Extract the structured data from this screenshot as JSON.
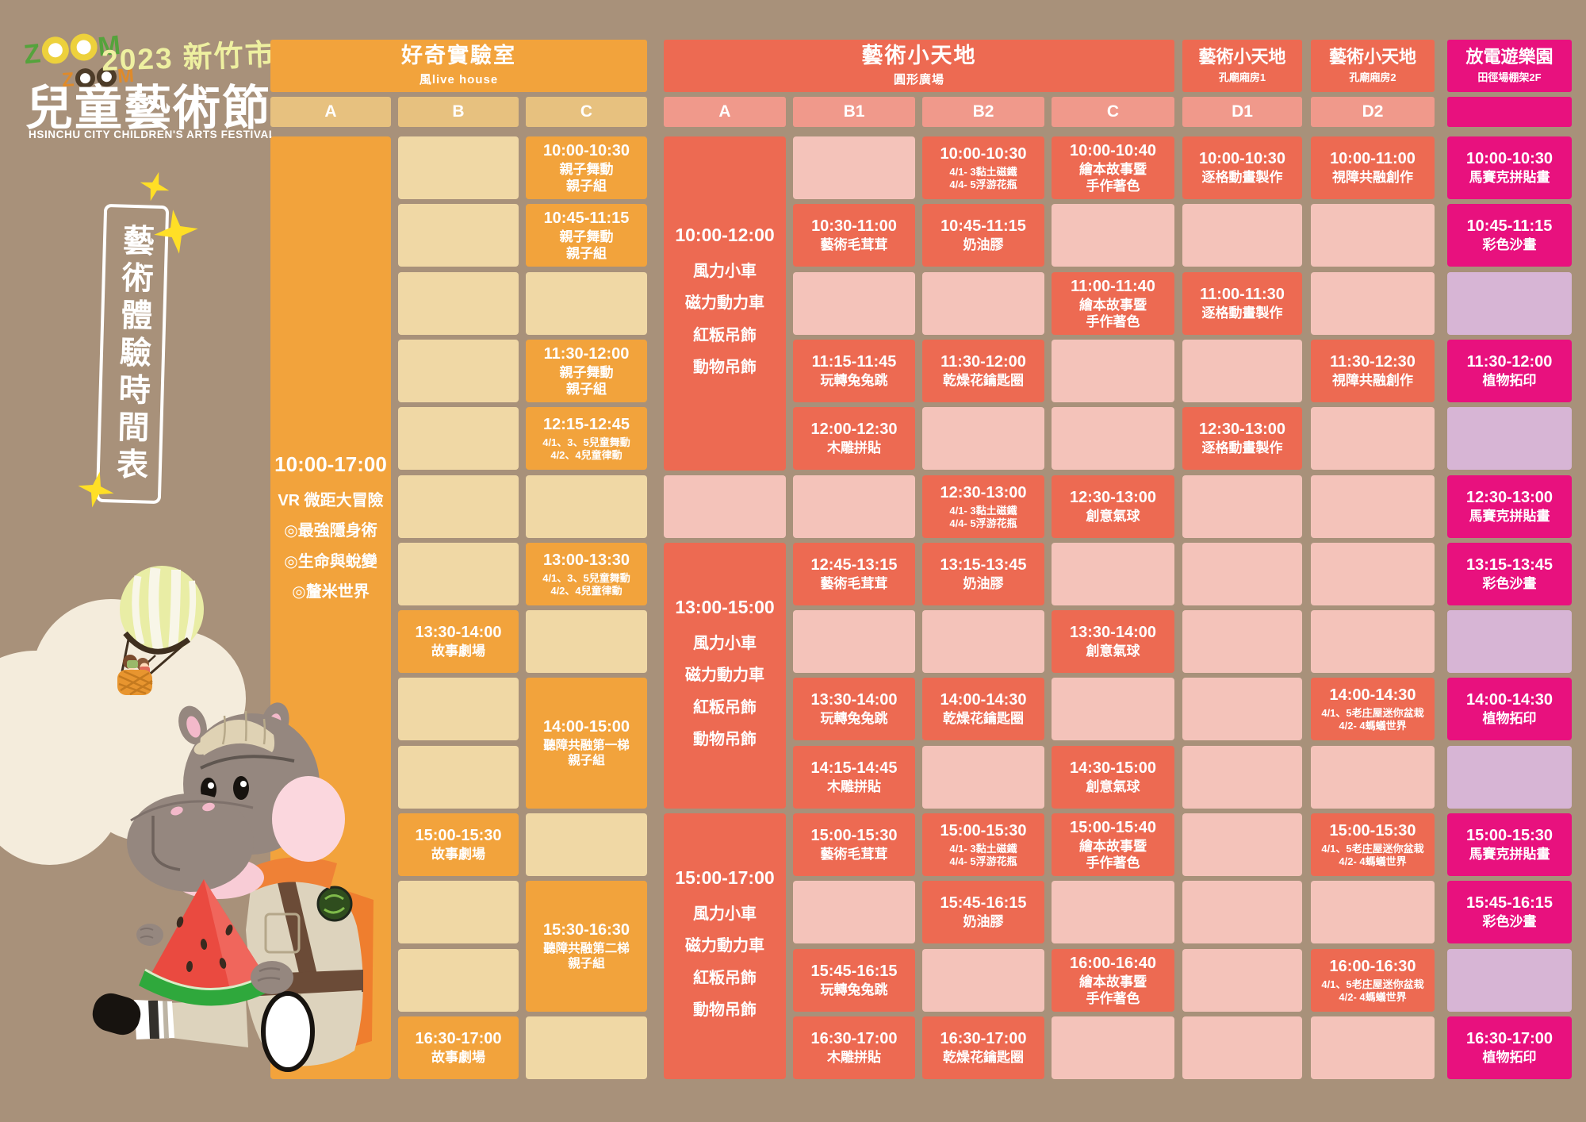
{
  "brand": {
    "logo_line1": "ZOOM",
    "logo_line2": "ZOOM",
    "year_city": "2023 新竹市",
    "title": "兒童藝術節",
    "subtitle_en": "HSINCHU CITY CHILDREN'S ARTS FESTIVAL"
  },
  "side_sign": {
    "text": "藝術體驗時間表"
  },
  "colors": {
    "background": "#a8917a",
    "orange": "#f2a33c",
    "orange_light": "#f0d8a5",
    "tan_header": "#e7c17f",
    "red": "#ed6a52",
    "salmon_header": "#f0998b",
    "pink_light": "#f4c3ba",
    "magenta": "#e8117e",
    "lavender": "#d7b5d5",
    "title_yellow": "#eef0a0",
    "star_yellow": "#ffdf26"
  },
  "sections": [
    {
      "title": "好奇實驗室",
      "subtitle": "風live house",
      "color": "orange"
    },
    {
      "title": "藝術小天地",
      "subtitle": "圓形廣場",
      "color": "red"
    },
    {
      "title": "藝術小天地",
      "subtitle": "孔廟廂房1",
      "color": "red"
    },
    {
      "title": "藝術小天地",
      "subtitle": "孔廟廂房2",
      "color": "red"
    },
    {
      "title": "放電遊樂園",
      "subtitle": "田徑場棚架2F",
      "color": "magenta"
    }
  ],
  "grid": {
    "column_letters": [
      "A",
      "B",
      "C",
      "A",
      "B1",
      "B2",
      "C",
      "D1",
      "D2",
      ""
    ],
    "columns": [
      {
        "palette": {
          "filled": "orange",
          "empty": "orange_light"
        },
        "cells": [
          {
            "span": 14,
            "time": "10:00-17:00",
            "lines": [
              "VR 微距大冒險",
              "◎最強隱身術",
              "◎生命與蛻變",
              "◎釐米世界"
            ]
          }
        ]
      },
      {
        "palette": {
          "filled": "orange",
          "empty": "orange_light"
        },
        "cells": [
          {
            "span": 1
          },
          {
            "span": 1
          },
          {
            "span": 1
          },
          {
            "span": 1
          },
          {
            "span": 1
          },
          {
            "span": 1
          },
          {
            "span": 1
          },
          {
            "span": 1,
            "time": "13:30-14:00",
            "lines": [
              "故事劇場"
            ]
          },
          {
            "span": 1
          },
          {
            "span": 1
          },
          {
            "span": 1,
            "time": "15:00-15:30",
            "lines": [
              "故事劇場"
            ]
          },
          {
            "span": 1
          },
          {
            "span": 1
          },
          {
            "span": 1,
            "time": "16:30-17:00",
            "lines": [
              "故事劇場"
            ]
          }
        ]
      },
      {
        "palette": {
          "filled": "orange",
          "empty": "orange_light"
        },
        "cells": [
          {
            "span": 1,
            "time": "10:00-10:30",
            "lines": [
              "親子舞動",
              "親子組"
            ]
          },
          {
            "span": 1,
            "time": "10:45-11:15",
            "lines": [
              "親子舞動",
              "親子組"
            ]
          },
          {
            "span": 1
          },
          {
            "span": 1,
            "time": "11:30-12:00",
            "lines": [
              "親子舞動",
              "親子組"
            ]
          },
          {
            "span": 1,
            "time": "12:15-12:45",
            "lines": [
              "4/1、3、5兒童舞動",
              "4/2、4兒童律動"
            ]
          },
          {
            "span": 1
          },
          {
            "span": 1,
            "time": "13:00-13:30",
            "lines": [
              "4/1、3、5兒童舞動",
              "4/2、4兒童律動"
            ]
          },
          {
            "span": 1
          },
          {
            "span": 2,
            "time": "14:00-15:00",
            "lines": [
              "聽障共融第一梯",
              "親子組"
            ]
          },
          {
            "span": 1
          },
          {
            "span": 2,
            "time": "15:30-16:30",
            "lines": [
              "聽障共融第二梯",
              "親子組"
            ]
          },
          {
            "span": 1
          }
        ]
      },
      {
        "palette": {
          "filled": "red",
          "empty": "pink_light"
        },
        "cells": [
          {
            "span": 5,
            "time": "10:00-12:00",
            "lines": [
              "風力小車",
              "磁力動力車",
              "紅粄吊飾",
              "動物吊飾"
            ]
          },
          {
            "span": 1
          },
          {
            "span": 4,
            "time": "13:00-15:00",
            "lines": [
              "風力小車",
              "磁力動力車",
              "紅粄吊飾",
              "動物吊飾"
            ]
          },
          {
            "span": 4,
            "time": "15:00-17:00",
            "lines": [
              "風力小車",
              "磁力動力車",
              "紅粄吊飾",
              "動物吊飾"
            ]
          }
        ]
      },
      {
        "palette": {
          "filled": "red",
          "empty": "pink_light"
        },
        "cells": [
          {
            "span": 1
          },
          {
            "span": 1,
            "time": "10:30-11:00",
            "lines": [
              "藝術毛茸茸"
            ]
          },
          {
            "span": 1
          },
          {
            "span": 1,
            "time": "11:15-11:45",
            "lines": [
              "玩轉兔兔跳"
            ]
          },
          {
            "span": 1,
            "time": "12:00-12:30",
            "lines": [
              "木雕拼貼"
            ]
          },
          {
            "span": 1
          },
          {
            "span": 1,
            "time": "12:45-13:15",
            "lines": [
              "藝術毛茸茸"
            ]
          },
          {
            "span": 1
          },
          {
            "span": 1,
            "time": "13:30-14:00",
            "lines": [
              "玩轉兔兔跳"
            ]
          },
          {
            "span": 1,
            "time": "14:15-14:45",
            "lines": [
              "木雕拼貼"
            ]
          },
          {
            "span": 1,
            "time": "15:00-15:30",
            "lines": [
              "藝術毛茸茸"
            ]
          },
          {
            "span": 1
          },
          {
            "span": 1,
            "time": "15:45-16:15",
            "lines": [
              "玩轉兔兔跳"
            ]
          },
          {
            "span": 1,
            "time": "16:30-17:00",
            "lines": [
              "木雕拼貼"
            ]
          }
        ]
      },
      {
        "palette": {
          "filled": "red",
          "empty": "pink_light"
        },
        "cells": [
          {
            "span": 1,
            "time": "10:00-10:30",
            "lines": [
              "4/1- 3黏土磁鐵",
              "4/4- 5浮游花瓶"
            ]
          },
          {
            "span": 1,
            "time": "10:45-11:15",
            "lines": [
              "奶油膠"
            ]
          },
          {
            "span": 1
          },
          {
            "span": 1,
            "time": "11:30-12:00",
            "lines": [
              "乾燥花鑰匙圈"
            ]
          },
          {
            "span": 1
          },
          {
            "span": 1,
            "time": "12:30-13:00",
            "lines": [
              "4/1- 3黏土磁鐵",
              "4/4- 5浮游花瓶"
            ]
          },
          {
            "span": 1,
            "time": "13:15-13:45",
            "lines": [
              "奶油膠"
            ]
          },
          {
            "span": 1
          },
          {
            "span": 1,
            "time": "14:00-14:30",
            "lines": [
              "乾燥花鑰匙圈"
            ]
          },
          {
            "span": 1
          },
          {
            "span": 1,
            "time": "15:00-15:30",
            "lines": [
              "4/1- 3黏土磁鐵",
              "4/4- 5浮游花瓶"
            ]
          },
          {
            "span": 1,
            "time": "15:45-16:15",
            "lines": [
              "奶油膠"
            ]
          },
          {
            "span": 1
          },
          {
            "span": 1,
            "time": "16:30-17:00",
            "lines": [
              "乾燥花鑰匙圈"
            ]
          }
        ]
      },
      {
        "palette": {
          "filled": "red",
          "empty": "pink_light"
        },
        "cells": [
          {
            "span": 1,
            "time": "10:00-10:40",
            "lines": [
              "繪本故事暨",
              "手作著色"
            ]
          },
          {
            "span": 1
          },
          {
            "span": 1,
            "time": "11:00-11:40",
            "lines": [
              "繪本故事暨",
              "手作著色"
            ]
          },
          {
            "span": 1
          },
          {
            "span": 1
          },
          {
            "span": 1,
            "time": "12:30-13:00",
            "lines": [
              "創意氣球"
            ]
          },
          {
            "span": 1
          },
          {
            "span": 1,
            "time": "13:30-14:00",
            "lines": [
              "創意氣球"
            ]
          },
          {
            "span": 1
          },
          {
            "span": 1,
            "time": "14:30-15:00",
            "lines": [
              "創意氣球"
            ]
          },
          {
            "span": 1,
            "time": "15:00-15:40",
            "lines": [
              "繪本故事暨",
              "手作著色"
            ]
          },
          {
            "span": 1
          },
          {
            "span": 1,
            "time": "16:00-16:40",
            "lines": [
              "繪本故事暨",
              "手作著色"
            ]
          },
          {
            "span": 1
          }
        ]
      },
      {
        "palette": {
          "filled": "red",
          "empty": "pink_light"
        },
        "cells": [
          {
            "span": 1,
            "time": "10:00-10:30",
            "lines": [
              "逐格動畫製作"
            ]
          },
          {
            "span": 1
          },
          {
            "span": 1,
            "time": "11:00-11:30",
            "lines": [
              "逐格動畫製作"
            ]
          },
          {
            "span": 1
          },
          {
            "span": 1,
            "time": "12:30-13:00",
            "lines": [
              "逐格動畫製作"
            ]
          },
          {
            "span": 1
          },
          {
            "span": 1
          },
          {
            "span": 1
          },
          {
            "span": 1
          },
          {
            "span": 1
          },
          {
            "span": 1
          },
          {
            "span": 1
          },
          {
            "span": 1
          },
          {
            "span": 1
          }
        ]
      },
      {
        "palette": {
          "filled": "red",
          "empty": "pink_light"
        },
        "cells": [
          {
            "span": 1,
            "time": "10:00-11:00",
            "lines": [
              "視障共融創作"
            ]
          },
          {
            "span": 1
          },
          {
            "span": 1
          },
          {
            "span": 1,
            "time": "11:30-12:30",
            "lines": [
              "視障共融創作"
            ]
          },
          {
            "span": 1
          },
          {
            "span": 1
          },
          {
            "span": 1
          },
          {
            "span": 1
          },
          {
            "span": 1,
            "time": "14:00-14:30",
            "lines": [
              "4/1、5老庄屋迷你盆栽",
              "4/2- 4螞蟻世界"
            ]
          },
          {
            "span": 1
          },
          {
            "span": 1,
            "time": "15:00-15:30",
            "lines": [
              "4/1、5老庄屋迷你盆栽",
              "4/2- 4螞蟻世界"
            ]
          },
          {
            "span": 1
          },
          {
            "span": 1,
            "time": "16:00-16:30",
            "lines": [
              "4/1、5老庄屋迷你盆栽",
              "4/2- 4螞蟻世界"
            ]
          },
          {
            "span": 1
          }
        ]
      },
      {
        "palette": {
          "filled": "magenta",
          "empty": "lavender"
        },
        "cells": [
          {
            "span": 1,
            "time": "10:00-10:30",
            "lines": [
              "馬賽克拼貼畫"
            ]
          },
          {
            "span": 1,
            "time": "10:45-11:15",
            "lines": [
              "彩色沙畫"
            ]
          },
          {
            "span": 1
          },
          {
            "span": 1,
            "time": "11:30-12:00",
            "lines": [
              "植物拓印"
            ]
          },
          {
            "span": 1
          },
          {
            "span": 1,
            "time": "12:30-13:00",
            "lines": [
              "馬賽克拼貼畫"
            ]
          },
          {
            "span": 1,
            "time": "13:15-13:45",
            "lines": [
              "彩色沙畫"
            ]
          },
          {
            "span": 1
          },
          {
            "span": 1,
            "time": "14:00-14:30",
            "lines": [
              "植物拓印"
            ]
          },
          {
            "span": 1
          },
          {
            "span": 1,
            "time": "15:00-15:30",
            "lines": [
              "馬賽克拼貼畫"
            ]
          },
          {
            "span": 1,
            "time": "15:45-16:15",
            "lines": [
              "彩色沙畫"
            ]
          },
          {
            "span": 1
          },
          {
            "span": 1,
            "time": "16:30-17:00",
            "lines": [
              "植物拓印"
            ]
          }
        ]
      }
    ]
  }
}
